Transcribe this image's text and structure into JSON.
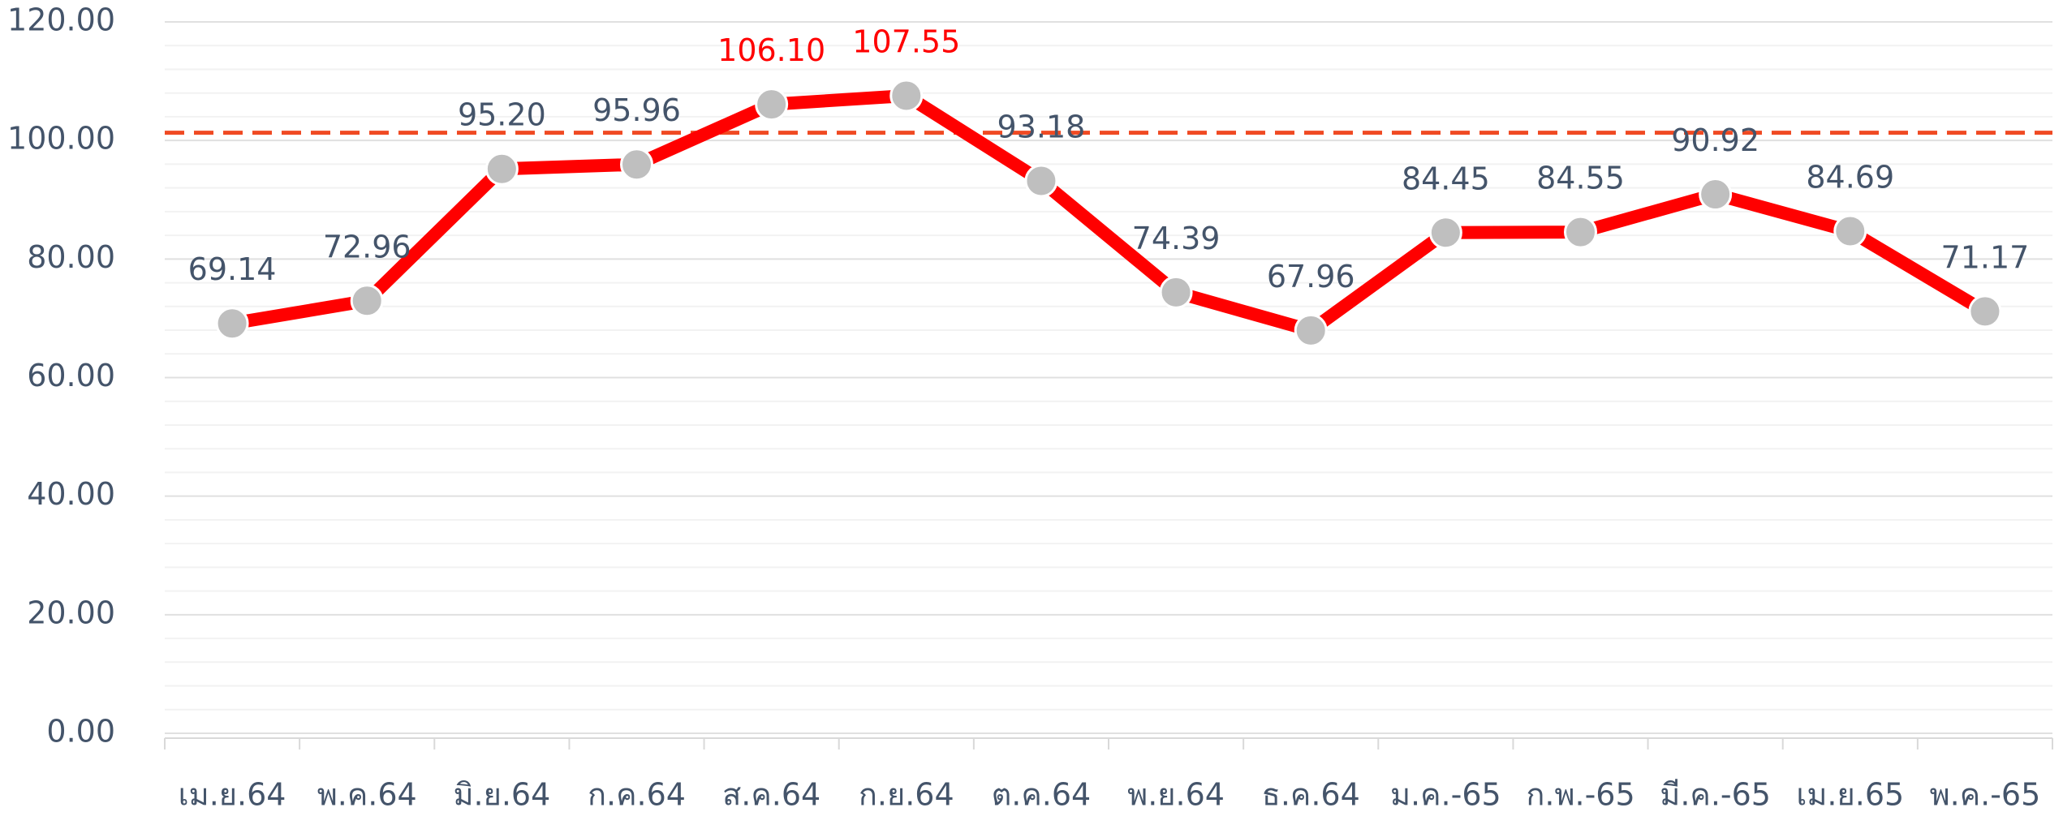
{
  "chart_data": {
    "type": "line",
    "categories": [
      "เม.ย.64",
      "พ.ค.64",
      "มิ.ย.64",
      "ก.ค.64",
      "ส.ค.64",
      "ก.ย.64",
      "ต.ค.64",
      "พ.ย.64",
      "ธ.ค.64",
      "ม.ค.-65",
      "ก.พ.-65",
      "มี.ค.-65",
      "เม.ย.65",
      "พ.ค.-65"
    ],
    "series": [
      {
        "color": "#ff0000",
        "marker_color": "#bfbfbf",
        "values": [
          69.14,
          72.96,
          95.2,
          95.96,
          106.1,
          107.55,
          93.18,
          74.39,
          67.96,
          84.45,
          84.55,
          90.92,
          84.69,
          71.17
        ],
        "value_labels": [
          "69.14",
          "72.96",
          "95.20",
          "95.96",
          "106.10",
          "107.55",
          "93.18",
          "74.39",
          "67.96",
          "84.45",
          "84.55",
          "90.92",
          "84.69",
          "71.17"
        ]
      }
    ],
    "reference_line": {
      "value": 101.3,
      "color": "#f04a23",
      "dashed": true
    },
    "label_color": "#44546a",
    "highlight_label_color": "#ff0000",
    "ylim": [
      0,
      120
    ],
    "yticks": [
      {
        "value": 0,
        "label": "0.00"
      },
      {
        "value": 20,
        "label": "20.00"
      },
      {
        "value": 40,
        "label": "40.00"
      },
      {
        "value": 60,
        "label": "60.00"
      },
      {
        "value": 80,
        "label": "80.00"
      },
      {
        "value": 100,
        "label": "100.00"
      },
      {
        "value": 120,
        "label": "120.00"
      }
    ],
    "grid": true,
    "minor_grid": true
  }
}
